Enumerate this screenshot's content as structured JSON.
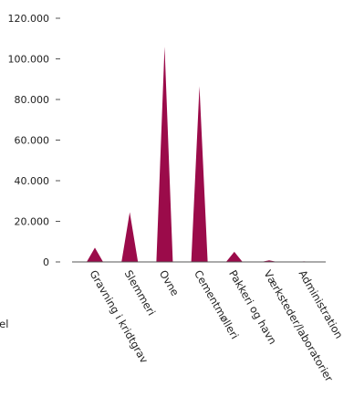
{
  "chart_data": {
    "type": "area",
    "categories": [
      "Gravning i kridtgrav",
      "Slemmeri",
      "Ovne",
      "Cementmølleri",
      "Pakkeri og havn",
      "Værksteder/laboratorier",
      "Administration"
    ],
    "values": [
      7000,
      24500,
      106000,
      86500,
      5000,
      800,
      300
    ],
    "yticks": [
      "120.000",
      "100.000",
      "80.000",
      "60.000",
      "40.000",
      "20.000",
      "0"
    ],
    "ytick_values": [
      120000,
      100000,
      80000,
      60000,
      40000,
      20000,
      0
    ],
    "ylim": [
      0,
      120000
    ],
    "title": "",
    "xlabel": "",
    "ylabel": "",
    "series_color": "#9b0b4a",
    "grid": false
  },
  "side_label": "lsel"
}
